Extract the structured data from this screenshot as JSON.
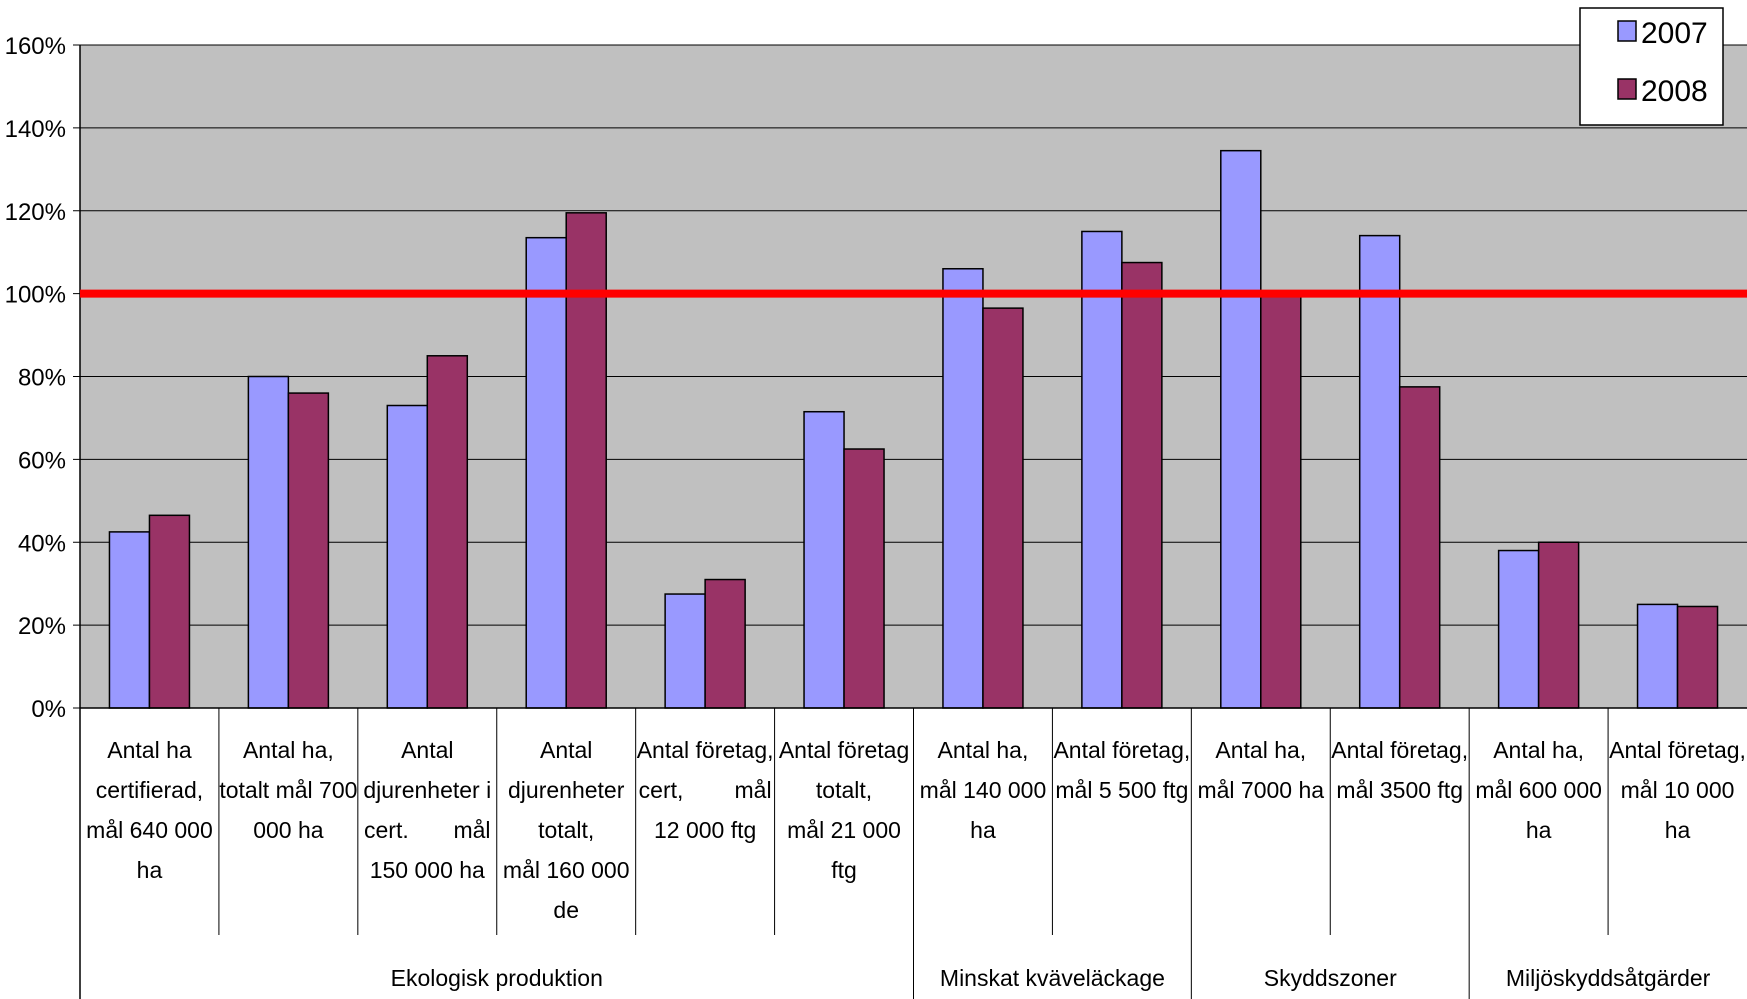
{
  "chart_data": {
    "type": "bar",
    "title": "",
    "ylim": [
      0,
      160
    ],
    "yticks": [
      "0%",
      "20%",
      "40%",
      "60%",
      "80%",
      "100%",
      "120%",
      "140%",
      "160%"
    ],
    "reference_line": {
      "value": 100,
      "color": "#ff0000"
    },
    "grid": true,
    "plot_background": "#c0c0c0",
    "legend_position": "top-right",
    "categories": [
      [
        "Antal ha",
        "certifierad,",
        "mål 640 000",
        "ha"
      ],
      [
        "Antal ha,",
        "totalt mål 700",
        "000 ha"
      ],
      [
        "Antal",
        "djurenheter i",
        "cert.       mål",
        "150 000 ha"
      ],
      [
        "Antal",
        "djurenheter",
        "totalt,",
        "mål 160 000",
        "de"
      ],
      [
        "Antal företag,",
        "cert,        mål",
        "12 000 ftg"
      ],
      [
        "Antal företag",
        "totalt,",
        "mål 21 000",
        "ftg"
      ],
      [
        "Antal ha,",
        "mål 140 000",
        "ha"
      ],
      [
        "Antal företag,",
        "mål 5 500 ftg"
      ],
      [
        "Antal ha,",
        "mål 7000 ha"
      ],
      [
        "Antal företag,",
        "mål 3500 ftg"
      ],
      [
        "Antal ha,",
        "mål 600 000",
        "ha"
      ],
      [
        "Antal företag,",
        "mål 10 000",
        "ha"
      ]
    ],
    "groups": [
      {
        "label": "Ekologisk produktion",
        "span": 6
      },
      {
        "label": "Minskat kväveläckage",
        "span": 2
      },
      {
        "label": "Skyddszoner",
        "span": 2
      },
      {
        "label": "Miljöskyddsåtgärder",
        "span": 2
      }
    ],
    "series": [
      {
        "name": "2007",
        "color": "#9999ff",
        "values": [
          42.5,
          80,
          73,
          113.5,
          27.5,
          71.5,
          106,
          115,
          134.5,
          114,
          38,
          25
        ]
      },
      {
        "name": "2008",
        "color": "#993366",
        "values": [
          46.5,
          76,
          85,
          119.5,
          31,
          62.5,
          96.5,
          107.5,
          100,
          77.5,
          40,
          24.5
        ]
      }
    ]
  }
}
